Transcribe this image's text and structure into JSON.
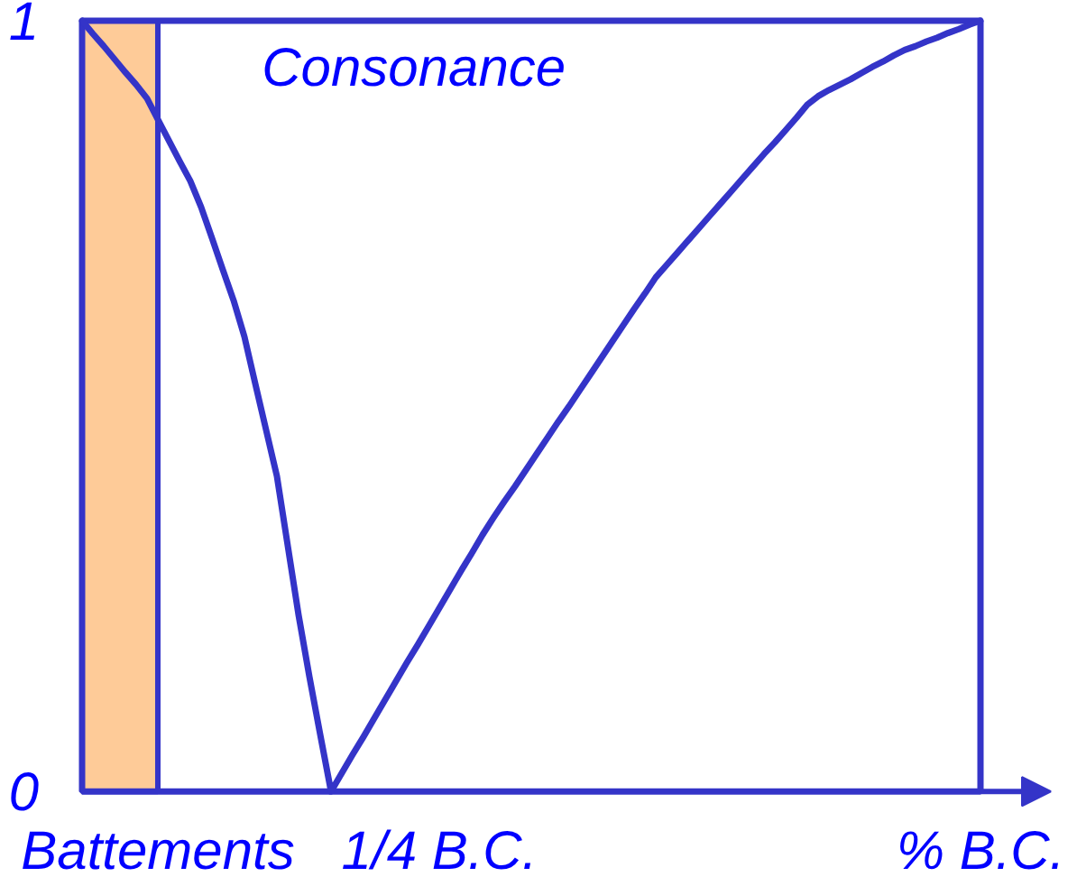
{
  "chart_data": {
    "type": "line",
    "ylim": [
      0,
      1
    ],
    "yticks": [
      0,
      1
    ],
    "categories": [
      null,
      null,
      null,
      null,
      null,
      null,
      null,
      "Battements",
      null,
      null,
      null,
      null,
      null,
      null,
      null,
      null,
      null,
      null,
      null,
      null,
      null,
      null,
      null,
      null,
      null,
      null,
      null,
      null,
      null,
      null,
      null,
      null,
      null,
      "1/4 B.C.",
      null,
      null,
      null,
      null,
      null,
      null,
      null,
      null,
      null,
      null,
      null,
      null,
      null,
      null,
      null,
      null,
      null,
      null,
      null,
      null,
      null,
      null,
      null,
      null,
      null,
      null,
      null,
      null,
      null,
      null,
      null,
      null,
      null,
      null,
      null,
      null,
      null,
      null,
      null,
      null,
      null,
      null,
      null,
      null,
      null,
      null,
      null,
      null,
      null,
      "% B.C."
    ],
    "series": [
      {
        "name": "Consonance",
        "color": "#3434c8",
        "values": [
          1,
          0.983,
          0.967,
          0.95,
          0.933,
          0.917,
          0.899,
          0.872,
          0.845,
          0.818,
          0.792,
          0.758,
          0.718,
          0.677,
          0.637,
          0.59,
          0.529,
          0.469,
          0.409,
          0.319,
          0.229,
          0.149,
          0.074,
          0,
          0.024,
          0.048,
          0.071,
          0.095,
          0.119,
          0.143,
          0.167,
          0.19,
          0.214,
          0.238,
          0.262,
          0.286,
          0.309,
          0.333,
          0.355,
          0.376,
          0.396,
          0.417,
          0.438,
          0.459,
          0.48,
          0.5,
          0.521,
          0.542,
          0.563,
          0.584,
          0.605,
          0.626,
          0.646,
          0.667,
          0.683,
          0.699,
          0.715,
          0.731,
          0.747,
          0.763,
          0.779,
          0.795,
          0.811,
          0.827,
          0.842,
          0.858,
          0.874,
          0.891,
          0.902,
          0.91,
          0.917,
          0.924,
          0.932,
          0.94,
          0.947,
          0.955,
          0.962,
          0.967,
          0.973,
          0.978,
          0.984,
          0.989,
          0.995,
          1
        ]
      }
    ]
  }
}
